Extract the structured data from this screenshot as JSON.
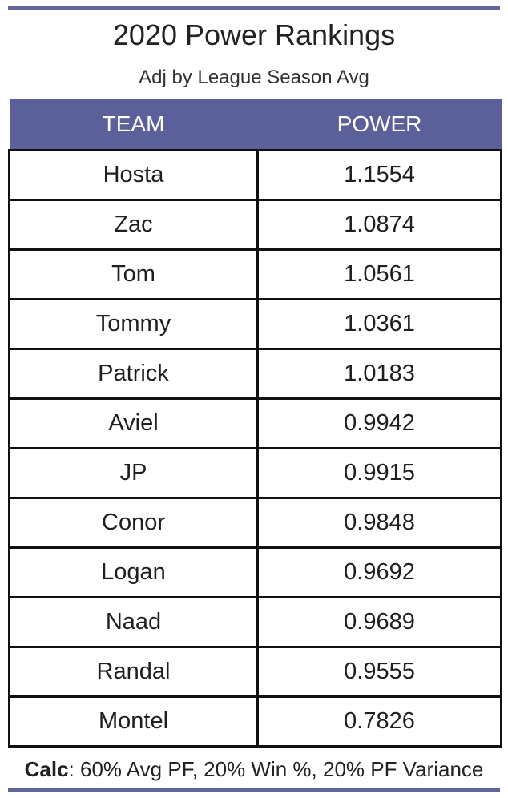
{
  "title": "2020 Power Rankings",
  "subtitle": "Adj by League Season Avg",
  "columns": [
    "TEAM",
    "POWER"
  ],
  "footer": {
    "label": "Calc",
    "text": ": 60% Avg PF, 20% Win %, 20% PF Variance"
  },
  "colors": {
    "header_bg": "#5c609a",
    "rule": "#5f6599",
    "header_text": "#ffffff"
  },
  "chart_data": {
    "type": "table",
    "title": "2020 Power Rankings",
    "subtitle": "Adj by League Season Avg",
    "columns": [
      "TEAM",
      "POWER"
    ],
    "rows": [
      [
        "Hosta",
        "1.1554"
      ],
      [
        "Zac",
        "1.0874"
      ],
      [
        "Tom",
        "1.0561"
      ],
      [
        "Tommy",
        "1.0361"
      ],
      [
        "Patrick",
        "1.0183"
      ],
      [
        "Aviel",
        "0.9942"
      ],
      [
        "JP",
        "0.9915"
      ],
      [
        "Conor",
        "0.9848"
      ],
      [
        "Logan",
        "0.9692"
      ],
      [
        "Naad",
        "0.9689"
      ],
      [
        "Randal",
        "0.9555"
      ],
      [
        "Montel",
        "0.7826"
      ]
    ]
  }
}
